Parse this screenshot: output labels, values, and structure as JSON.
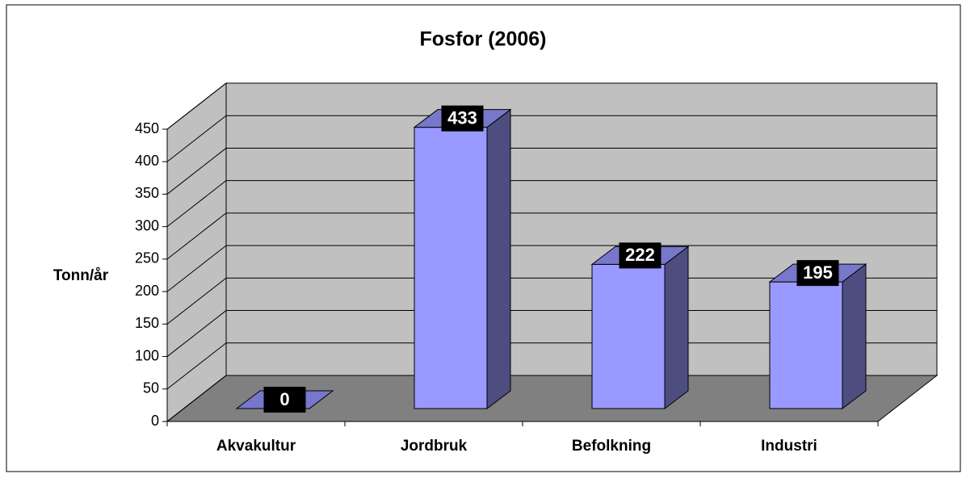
{
  "chart_data": {
    "type": "bar3d",
    "title": "Fosfor (2006)",
    "y_label": "Tonn/år",
    "categories": [
      "Akvakultur",
      "Jordbruk",
      "Befolkning",
      "Industri"
    ],
    "values": [
      0,
      433,
      222,
      195
    ],
    "color": "#9999ff",
    "ylim": [
      0,
      450
    ],
    "yticks": [
      0,
      50,
      100,
      150,
      200,
      250,
      300,
      350,
      400,
      450
    ],
    "grid": true
  }
}
